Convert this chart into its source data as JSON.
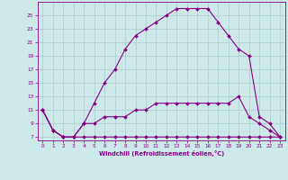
{
  "xlabel": "Windchill (Refroidissement éolien,°C)",
  "bg_color": "#cce8e8",
  "grid_color": "#aacccc",
  "line_color": "#880088",
  "xlim": [
    -0.5,
    23.5
  ],
  "ylim": [
    6.5,
    27
  ],
  "xticks": [
    0,
    1,
    2,
    3,
    4,
    5,
    6,
    7,
    8,
    9,
    10,
    11,
    12,
    13,
    14,
    15,
    16,
    17,
    18,
    19,
    20,
    21,
    22,
    23
  ],
  "yticks": [
    7,
    9,
    11,
    13,
    15,
    17,
    19,
    21,
    23,
    25
  ],
  "curve1_x": [
    0,
    1,
    2,
    3,
    4,
    5,
    6,
    7,
    8,
    9,
    10,
    11,
    12,
    13,
    14,
    15,
    16,
    17,
    18,
    19,
    20,
    21,
    22,
    23
  ],
  "curve1_y": [
    11,
    8,
    7,
    7,
    7,
    7,
    7,
    7,
    7,
    7,
    7,
    7,
    7,
    7,
    7,
    7,
    7,
    7,
    7,
    7,
    7,
    7,
    7,
    7
  ],
  "curve2_x": [
    0,
    1,
    2,
    3,
    4,
    5,
    6,
    7,
    8,
    9,
    10,
    11,
    12,
    13,
    14,
    15,
    16,
    17,
    18,
    19,
    20,
    21,
    22,
    23
  ],
  "curve2_y": [
    11,
    8,
    7,
    7,
    9,
    9,
    10,
    10,
    10,
    11,
    11,
    12,
    12,
    12,
    12,
    12,
    12,
    12,
    12,
    13,
    10,
    9,
    8,
    7
  ],
  "curve3_x": [
    0,
    1,
    2,
    3,
    4,
    5,
    6,
    7,
    8,
    9,
    10,
    11,
    12,
    13,
    14,
    15,
    16,
    17,
    18,
    19,
    20,
    21,
    22,
    23
  ],
  "curve3_y": [
    11,
    8,
    7,
    7,
    9,
    12,
    15,
    17,
    20,
    22,
    23,
    24,
    25,
    26,
    26,
    26,
    26,
    24,
    22,
    20,
    19,
    10,
    9,
    7
  ]
}
